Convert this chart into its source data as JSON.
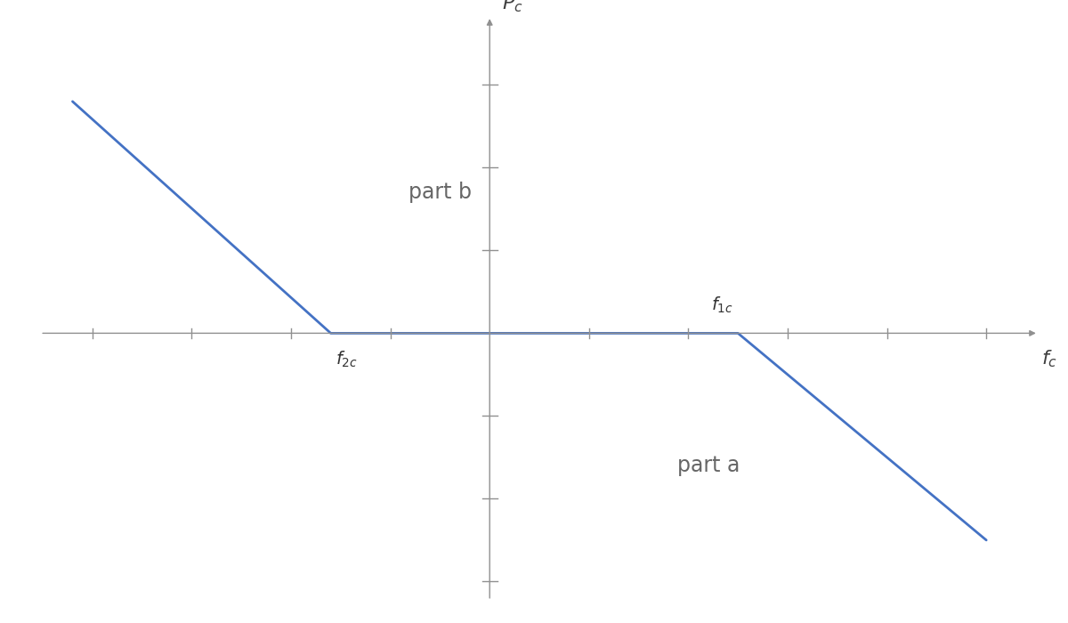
{
  "background_color": "#ffffff",
  "line_color": "#4472C4",
  "line_width": 2.0,
  "axis_color": "#909090",
  "axis_linewidth": 1.0,
  "xlim": [
    -4.5,
    5.5
  ],
  "ylim": [
    -3.2,
    3.8
  ],
  "f2c_x": -1.6,
  "f1c_x": 2.5,
  "x_left_end": -4.2,
  "y_left_end": 2.8,
  "x_right_end": 5.0,
  "y_right_end": -2.5,
  "part_a_text": "part a",
  "part_b_text": "part b",
  "part_a_x": 2.2,
  "part_a_y": -1.6,
  "part_b_x": -0.5,
  "part_b_y": 1.7,
  "tick_positions_x": [
    -4.0,
    -3.0,
    -2.0,
    -1.0,
    1.0,
    2.0,
    3.0,
    4.0,
    5.0
  ],
  "tick_positions_y": [
    -3.0,
    -2.0,
    -1.0,
    1.0,
    2.0,
    3.0
  ],
  "tick_len_x": 0.055,
  "tick_len_y": 0.075,
  "figsize": [
    12,
    7
  ],
  "dpi": 100
}
